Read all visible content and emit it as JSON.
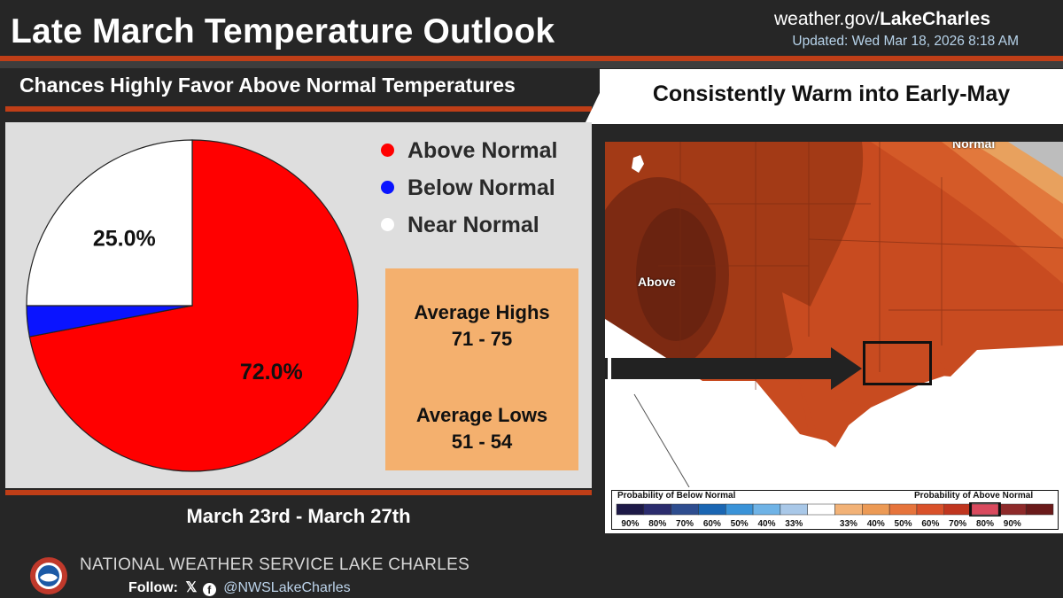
{
  "header": {
    "title": "Late March Temperature Outlook",
    "site_prefix": "weather.gov/",
    "site_office": "LakeCharles",
    "updated": "Updated: Wed Mar 18, 2026 8:18 AM"
  },
  "left": {
    "subtitle": "Chances Highly Favor Above Normal Temperatures",
    "legend": [
      {
        "label": "Above Normal",
        "color": "#ff0000"
      },
      {
        "label": "Below Normal",
        "color": "#0a14ff"
      },
      {
        "label": "Near Normal",
        "color": "#ffffff"
      }
    ],
    "averages": {
      "highs_label": "Average Highs",
      "highs_value": "71 - 75",
      "lows_label": "Average Lows",
      "lows_value": "51 - 54"
    },
    "date_range": "March 23rd - March 27th"
  },
  "chart_data": {
    "type": "pie",
    "slices": [
      {
        "label": "Above Normal",
        "value": 72.0,
        "color": "#ff0000",
        "data_label": "72.0%"
      },
      {
        "label": "Below Normal",
        "value": 3.0,
        "color": "#0a14ff",
        "data_label": ""
      },
      {
        "label": "Near Normal",
        "value": 25.0,
        "color": "#ffffff",
        "data_label": "25.0%"
      }
    ],
    "legend_placement": "right"
  },
  "right": {
    "title": "Consistently Warm into Early-May",
    "map_labels": {
      "above": "Above",
      "normal": "Normal"
    },
    "scale": {
      "below_title": "Probability of Below Normal",
      "above_title": "Probability of Above Normal",
      "below_colors": [
        "#1d1947",
        "#2b2c6e",
        "#2e4d8f",
        "#1a66b3",
        "#3a93d8",
        "#6fb3e6",
        "#a9c8e8"
      ],
      "near_color": "#ffffff",
      "above_colors": [
        "#f2b277",
        "#ec9a55",
        "#e6743c",
        "#d9512a",
        "#c0361f",
        "#d94a5e",
        "#8e2a2a",
        "#6a1a1a"
      ],
      "below_ticks": [
        "90%",
        "80%",
        "70%",
        "60%",
        "50%",
        "40%",
        "33%"
      ],
      "above_ticks": [
        "33%",
        "40%",
        "50%",
        "60%",
        "70%",
        "80%",
        "90%"
      ]
    }
  },
  "footer": {
    "office": "NATIONAL WEATHER SERVICE LAKE CHARLES",
    "follow_label": "Follow:",
    "handle": "@NWSLakeCharles"
  }
}
